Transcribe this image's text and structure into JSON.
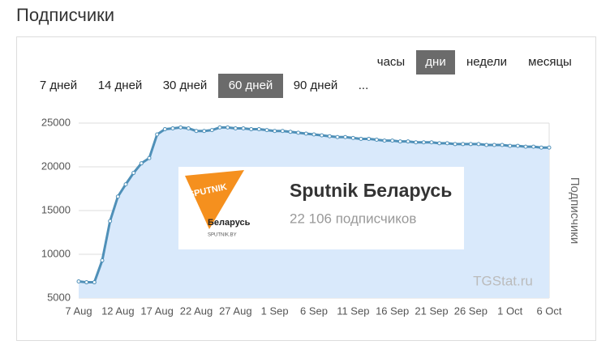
{
  "header": {
    "title": "Подписчики"
  },
  "period_tabs": {
    "items": [
      "часы",
      "дни",
      "недели",
      "месяцы"
    ],
    "active": 1
  },
  "range_tabs": {
    "items": [
      "7 дней",
      "14 дней",
      "30 дней",
      "60 дней",
      "90 дней",
      "..."
    ],
    "active": 3
  },
  "channel_card": {
    "name": "Sputnik Беларусь",
    "subscribers": "22 106 подписчиков",
    "logo_text": "SPUTNIK",
    "logo_subtitle": "Беларусь",
    "logo_url": "SPUTNIK.BY"
  },
  "watermark": "TGStat.ru",
  "chart_data": {
    "type": "area",
    "y_label": "Подписчики",
    "color": "#4f90b8",
    "fill": "#d9e9fb",
    "grid": true,
    "categories": [
      "7 Aug",
      null,
      null,
      null,
      null,
      "12 Aug",
      null,
      null,
      null,
      null,
      "17 Aug",
      null,
      null,
      null,
      null,
      "22 Aug",
      null,
      null,
      null,
      null,
      "27 Aug",
      null,
      null,
      null,
      null,
      "1 Sep",
      null,
      null,
      null,
      null,
      "6 Sep",
      null,
      null,
      null,
      null,
      "11 Sep",
      null,
      null,
      null,
      null,
      "16 Sep",
      null,
      null,
      null,
      null,
      "21 Sep",
      null,
      null,
      null,
      null,
      "26 Sep",
      null,
      null,
      null,
      null,
      "1 Oct",
      null,
      null,
      null,
      null,
      "6 Oct"
    ],
    "values": [
      6900,
      6800,
      6800,
      9300,
      13800,
      16600,
      18000,
      19300,
      20400,
      21000,
      23700,
      24300,
      24400,
      24500,
      24400,
      24100,
      24100,
      24200,
      24500,
      24500,
      24400,
      24400,
      24300,
      24300,
      24200,
      24100,
      24100,
      24000,
      23900,
      23800,
      23700,
      23600,
      23500,
      23400,
      23400,
      23300,
      23200,
      23200,
      23100,
      23000,
      23000,
      22900,
      22900,
      22800,
      22800,
      22800,
      22700,
      22700,
      22600,
      22600,
      22600,
      22600,
      22500,
      22500,
      22500,
      22400,
      22400,
      22300,
      22300,
      22200,
      22200
    ],
    "ylim": [
      5000,
      25000
    ],
    "yticks": [
      5000,
      10000,
      15000,
      20000,
      25000
    ]
  }
}
